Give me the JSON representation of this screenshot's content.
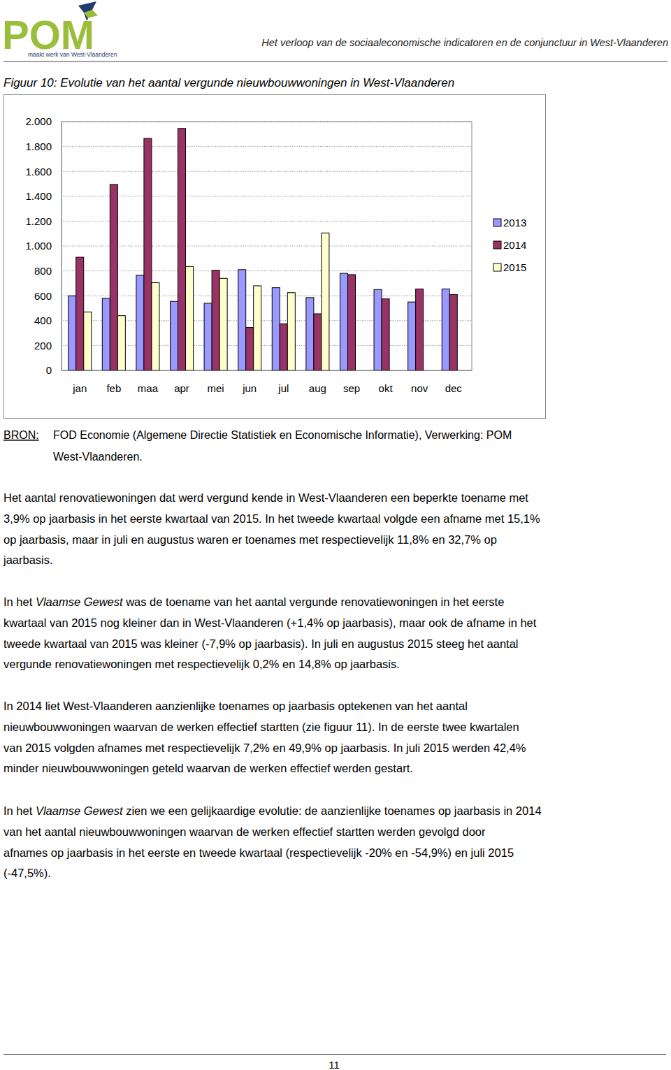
{
  "logo": {
    "name": "POM",
    "tagline": "maakt werk van West-Vlaanderen"
  },
  "header": "Het verloop van de sociaaleconomische indicatoren en de conjunctuur in West-Vlaanderen",
  "chart_data": {
    "type": "bar",
    "title": "Figuur 10: Evolutie van het aantal vergunde nieuwbouwwoningen in West-Vlaanderen",
    "categories": [
      "jan",
      "feb",
      "maa",
      "apr",
      "mei",
      "jun",
      "jul",
      "aug",
      "sep",
      "okt",
      "nov",
      "dec"
    ],
    "series": [
      {
        "name": "2013",
        "color": "#9999ff",
        "values": [
          600,
          580,
          765,
          555,
          540,
          810,
          665,
          585,
          780,
          650,
          550,
          655
        ]
      },
      {
        "name": "2014",
        "color": "#993366",
        "values": [
          910,
          1495,
          1865,
          1945,
          805,
          345,
          375,
          455,
          770,
          575,
          655,
          610
        ]
      },
      {
        "name": "2015",
        "color": "#ffffcc",
        "values": [
          470,
          440,
          705,
          835,
          740,
          680,
          625,
          1105,
          null,
          null,
          null,
          null
        ]
      }
    ],
    "ylim": [
      0,
      2000
    ],
    "yticks": [
      0,
      200,
      400,
      600,
      800,
      {
        "value": 1000,
        "label": "1.000"
      },
      {
        "value": 1200,
        "label": "1.200"
      },
      {
        "value": 1400,
        "label": "1.400"
      },
      {
        "value": 1600,
        "label": "1.600"
      },
      {
        "value": 1800,
        "label": "1.800"
      },
      {
        "value": 2000,
        "label": "2.000"
      }
    ],
    "grid": true,
    "legend": "right"
  },
  "source": {
    "label": "BRON:",
    "lines": [
      "FOD Economie (Algemene Directie Statistiek en Economische Informatie), Verwerking: POM",
      "West-Vlaanderen."
    ]
  },
  "paragraphs": [
    {
      "lines": [
        [
          "Het aantal renovatiewoningen dat werd vergund kende in West-Vlaanderen een beperkte toename met"
        ],
        [
          "3,9% op jaarbasis in het eerste kwartaal van 2015. In het tweede kwartaal volgde een afname met 15,1%"
        ],
        [
          "op jaarbasis, maar in juli en augustus waren er toenames met respectievelijk 11,8% en 32,7% op"
        ],
        [
          "jaarbasis."
        ]
      ]
    },
    {
      "lines": [
        [
          "In het ",
          {
            "italic": "Vlaamse Gewest"
          },
          " was de toename van het aantal vergunde renovatiewoningen in het eerste"
        ],
        [
          "kwartaal van 2015 nog kleiner dan in West-Vlaanderen (+1,4% op jaarbasis), maar ook de afname in het"
        ],
        [
          "tweede kwartaal van 2015 was kleiner (-7,9% op jaarbasis). In juli en augustus 2015 steeg het aantal"
        ],
        [
          "vergunde renovatiewoningen met respectievelijk 0,2% en 14,8% op jaarbasis."
        ]
      ]
    },
    {
      "lines": [
        [
          "In 2014 liet West-Vlaanderen aanzienlijke toenames op jaarbasis optekenen van het aantal"
        ],
        [
          "nieuwbouwwoningen waarvan de werken effectief startten (zie figuur 11). In de eerste twee kwartalen"
        ],
        [
          "van 2015 volgden afnames met respectievelijk 7,2% en 49,9% op jaarbasis. In juli 2015 werden 42,4%"
        ],
        [
          "minder nieuwbouwwoningen geteld waarvan de werken effectief werden gestart."
        ]
      ]
    },
    {
      "lines": [
        [
          "In het ",
          {
            "italic": "Vlaamse Gewest"
          },
          " zien we een gelijkaardige evolutie: de aanzienlijke toenames op jaarbasis in 2014"
        ],
        [
          "van het aantal nieuwbouwwoningen waarvan de werken effectief startten werden gevolgd door"
        ],
        [
          "afnames op jaarbasis in het eerste en tweede kwartaal (respectievelijk -20% en -54,9%) en juli 2015"
        ],
        [
          "(-47,5%)."
        ]
      ]
    }
  ],
  "page_number": "11"
}
